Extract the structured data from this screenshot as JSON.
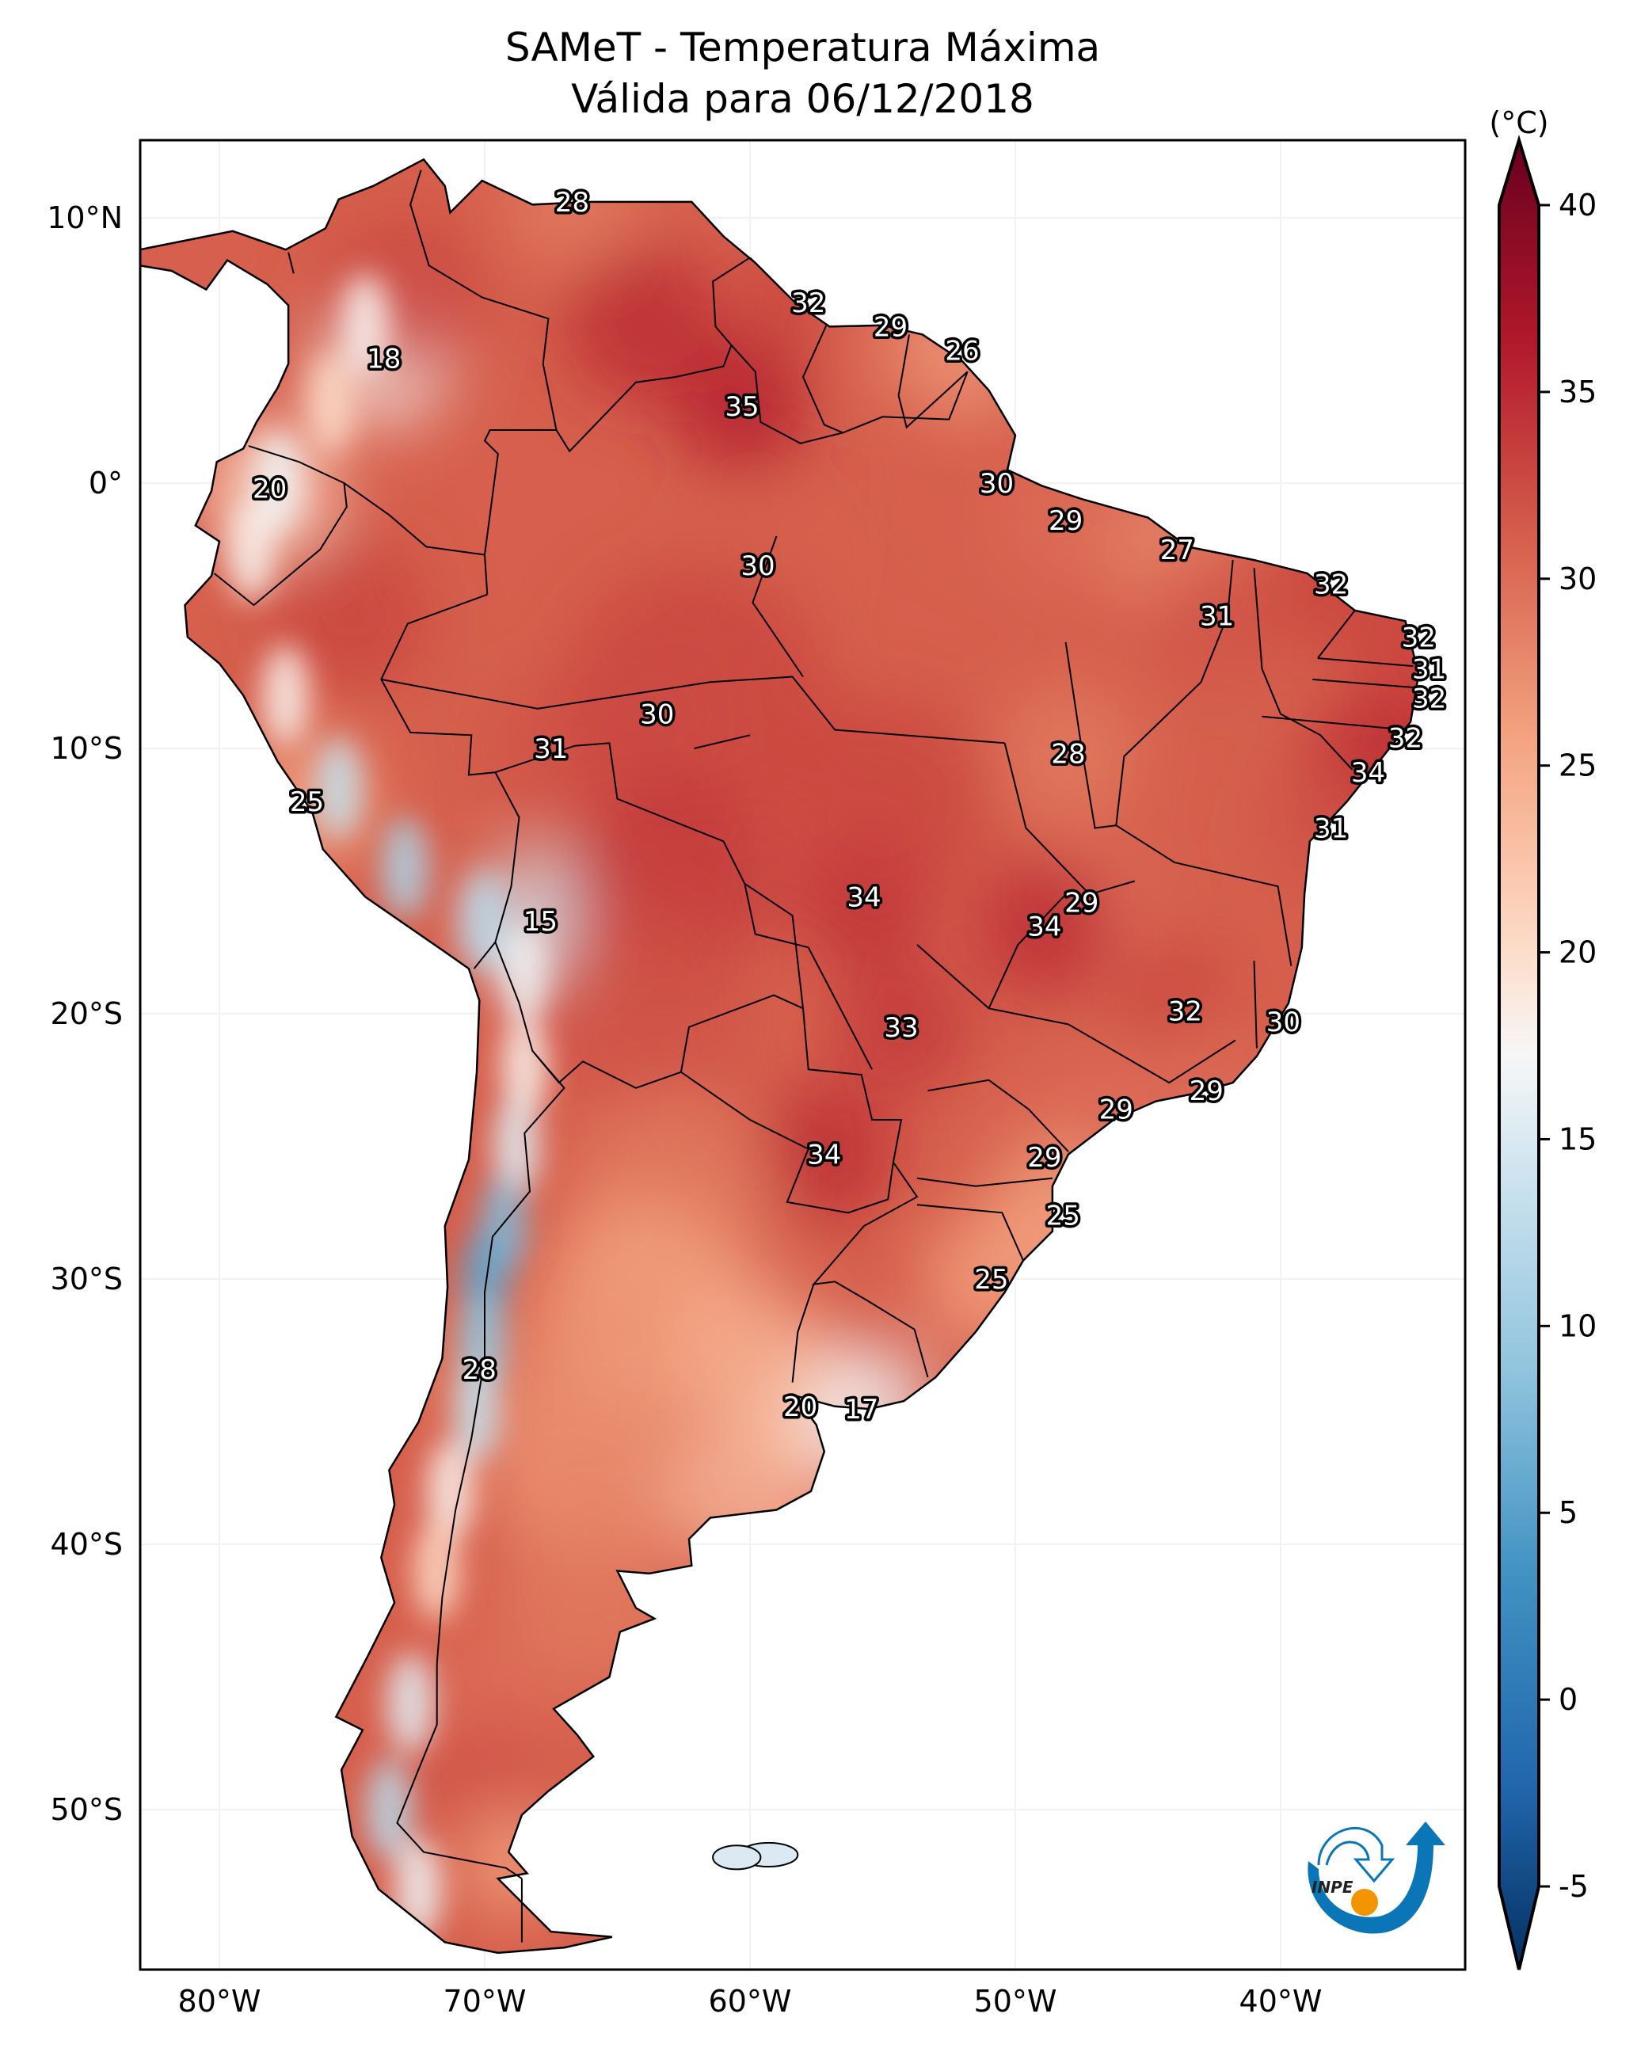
{
  "title": {
    "line1": "SAMeT - Temperatura Máxima",
    "line2": "Válida para 06/12/2018"
  },
  "chart_data": {
    "type": "heatmap",
    "title": "SAMeT - Temperatura Máxima",
    "subtitle": "Válida para 06/12/2018",
    "region": "South America",
    "map_extent": {
      "lon": [
        -83,
        -33
      ],
      "lat": [
        -56,
        13
      ]
    },
    "x_ticks": [
      {
        "value": -80,
        "label": "80°W"
      },
      {
        "value": -70,
        "label": "70°W"
      },
      {
        "value": -60,
        "label": "60°W"
      },
      {
        "value": -50,
        "label": "50°W"
      },
      {
        "value": -40,
        "label": "40°W"
      }
    ],
    "y_ticks": [
      {
        "value": 10,
        "label": "10°N"
      },
      {
        "value": 0,
        "label": "0°"
      },
      {
        "value": -10,
        "label": "10°S"
      },
      {
        "value": -20,
        "label": "20°S"
      },
      {
        "value": -30,
        "label": "30°S"
      },
      {
        "value": -40,
        "label": "40°S"
      },
      {
        "value": -50,
        "label": "50°S"
      }
    ],
    "colorbar": {
      "label": "(°C)",
      "min": -5,
      "max": 40,
      "extend": "both",
      "colormap": "RdBu_r",
      "ticks": [
        -5,
        0,
        5,
        10,
        15,
        20,
        25,
        30,
        35,
        40
      ]
    },
    "point_labels": [
      {
        "lon": -66.7,
        "lat": 10.6,
        "value": 28
      },
      {
        "lon": -57.8,
        "lat": 6.8,
        "value": 32
      },
      {
        "lon": -54.7,
        "lat": 5.9,
        "value": 29
      },
      {
        "lon": -52.0,
        "lat": 5.0,
        "value": 26
      },
      {
        "lon": -73.8,
        "lat": 4.7,
        "value": 18
      },
      {
        "lon": -60.3,
        "lat": 2.9,
        "value": 35
      },
      {
        "lon": -78.1,
        "lat": -0.2,
        "value": 20
      },
      {
        "lon": -50.7,
        "lat": 0.0,
        "value": 30
      },
      {
        "lon": -48.1,
        "lat": -1.4,
        "value": 29
      },
      {
        "lon": -59.7,
        "lat": -3.1,
        "value": 30
      },
      {
        "lon": -43.9,
        "lat": -2.5,
        "value": 27
      },
      {
        "lon": -38.1,
        "lat": -3.8,
        "value": 32
      },
      {
        "lon": -42.4,
        "lat": -5.0,
        "value": 31
      },
      {
        "lon": -34.8,
        "lat": -5.8,
        "value": 32
      },
      {
        "lon": -34.4,
        "lat": -7.0,
        "value": 31
      },
      {
        "lon": -34.4,
        "lat": -8.1,
        "value": 32
      },
      {
        "lon": -63.5,
        "lat": -8.7,
        "value": 30
      },
      {
        "lon": -67.5,
        "lat": -10.0,
        "value": 31
      },
      {
        "lon": -35.3,
        "lat": -9.6,
        "value": 32
      },
      {
        "lon": -48.0,
        "lat": -10.2,
        "value": 28
      },
      {
        "lon": -36.7,
        "lat": -10.9,
        "value": 34
      },
      {
        "lon": -76.7,
        "lat": -12.0,
        "value": 25
      },
      {
        "lon": -38.1,
        "lat": -13.0,
        "value": 31
      },
      {
        "lon": -55.7,
        "lat": -15.6,
        "value": 34
      },
      {
        "lon": -47.5,
        "lat": -15.8,
        "value": 29
      },
      {
        "lon": -67.9,
        "lat": -16.5,
        "value": 15
      },
      {
        "lon": -48.9,
        "lat": -16.7,
        "value": 34
      },
      {
        "lon": -43.6,
        "lat": -19.9,
        "value": 32
      },
      {
        "lon": -39.9,
        "lat": -20.3,
        "value": 30
      },
      {
        "lon": -54.3,
        "lat": -20.5,
        "value": 33
      },
      {
        "lon": -46.2,
        "lat": -23.6,
        "value": 29
      },
      {
        "lon": -42.8,
        "lat": -22.9,
        "value": 29
      },
      {
        "lon": -57.2,
        "lat": -25.3,
        "value": 34
      },
      {
        "lon": -48.9,
        "lat": -25.4,
        "value": 29
      },
      {
        "lon": -48.2,
        "lat": -27.6,
        "value": 25
      },
      {
        "lon": -50.9,
        "lat": -30.0,
        "value": 25
      },
      {
        "lon": -70.2,
        "lat": -33.4,
        "value": 28
      },
      {
        "lon": -58.1,
        "lat": -34.8,
        "value": 20
      },
      {
        "lon": -55.8,
        "lat": -34.9,
        "value": 17
      }
    ]
  },
  "logo": {
    "text": "INPE",
    "blue": "#0a76b8",
    "orange": "#f29400"
  }
}
